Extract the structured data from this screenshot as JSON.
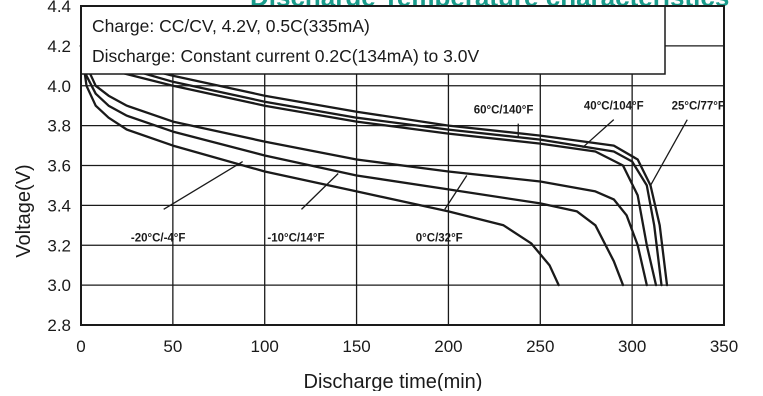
{
  "header_fragment": "Discharge Temperature characteristics",
  "conditions": {
    "charge": "Charge: CC/CV, 4.2V, 0.5C(335mA)",
    "discharge": "Discharge: Constant current 0.2C(134mA) to 3.0V"
  },
  "chart_data": {
    "type": "line",
    "title": "",
    "xlabel": "Discharge time(min)",
    "ylabel": "Voltage(V)",
    "xlim": [
      0,
      350
    ],
    "ylim": [
      2.8,
      4.4
    ],
    "xticks": [
      0,
      50,
      100,
      150,
      200,
      250,
      300,
      350
    ],
    "yticks": [
      2.8,
      3.0,
      3.2,
      3.4,
      3.6,
      3.8,
      4.0,
      4.2,
      4.4
    ],
    "xtick_labels": [
      "0",
      "50",
      "100",
      "150",
      "200",
      "250",
      "300",
      "350"
    ],
    "ytick_labels": [
      "2.8",
      "3.0",
      "3.2",
      "3.4",
      "3.6",
      "3.8",
      "4.0",
      "4.2",
      "4.4"
    ],
    "grid": true,
    "legend": "inline labels",
    "series": [
      {
        "name": "-20°C/-4°F",
        "x": [
          0,
          3,
          8,
          15,
          25,
          50,
          100,
          150,
          200,
          230,
          245,
          255,
          260
        ],
        "y": [
          4.2,
          4.0,
          3.9,
          3.84,
          3.78,
          3.7,
          3.57,
          3.47,
          3.37,
          3.3,
          3.21,
          3.1,
          3.0
        ]
      },
      {
        "name": "-10°C/14°F",
        "x": [
          0,
          3,
          8,
          15,
          25,
          50,
          100,
          150,
          200,
          250,
          270,
          280,
          290,
          295
        ],
        "y": [
          4.2,
          4.05,
          3.96,
          3.9,
          3.85,
          3.77,
          3.65,
          3.55,
          3.48,
          3.41,
          3.37,
          3.3,
          3.12,
          3.0
        ]
      },
      {
        "name": "0°C/32°F",
        "x": [
          0,
          3,
          8,
          15,
          25,
          50,
          100,
          150,
          200,
          250,
          280,
          290,
          297,
          303,
          308
        ],
        "y": [
          4.2,
          4.1,
          4.0,
          3.95,
          3.9,
          3.82,
          3.72,
          3.63,
          3.57,
          3.52,
          3.47,
          3.43,
          3.35,
          3.2,
          3.0
        ]
      },
      {
        "name": "60°C/140°F",
        "x": [
          0,
          5,
          10,
          20,
          50,
          100,
          150,
          200,
          250,
          280,
          295,
          303,
          308,
          313
        ],
        "y": [
          4.2,
          4.15,
          4.11,
          4.07,
          4.0,
          3.9,
          3.82,
          3.76,
          3.71,
          3.67,
          3.6,
          3.45,
          3.2,
          3.0
        ]
      },
      {
        "name": "40°C/104°F",
        "x": [
          0,
          5,
          10,
          20,
          50,
          100,
          150,
          200,
          250,
          290,
          300,
          308,
          312,
          316
        ],
        "y": [
          4.2,
          4.16,
          4.13,
          4.1,
          4.02,
          3.92,
          3.84,
          3.78,
          3.73,
          3.67,
          3.62,
          3.5,
          3.3,
          3.0
        ]
      },
      {
        "name": "25°C/77°F",
        "x": [
          0,
          5,
          10,
          20,
          50,
          100,
          150,
          200,
          250,
          290,
          303,
          310,
          315,
          319
        ],
        "y": [
          4.2,
          4.17,
          4.15,
          4.12,
          4.05,
          3.95,
          3.87,
          3.8,
          3.75,
          3.7,
          3.63,
          3.5,
          3.3,
          3.0
        ]
      }
    ]
  }
}
